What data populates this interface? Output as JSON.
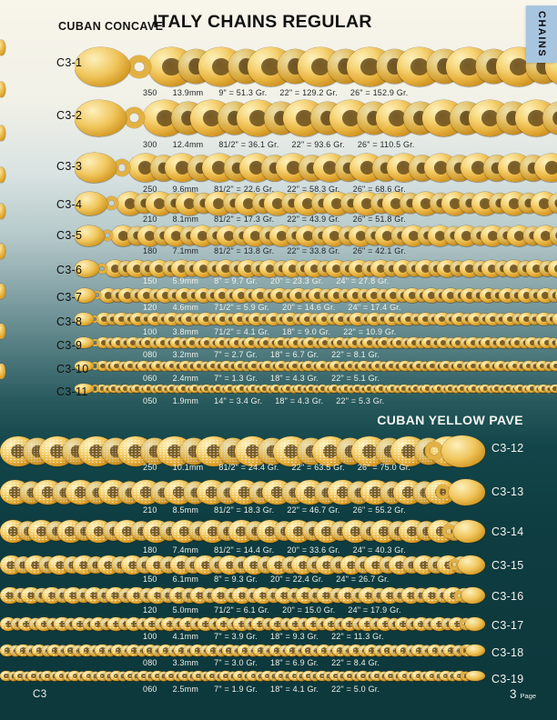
{
  "header": {
    "category": "CUBAN CONCAVE",
    "title": "ITALY CHAINS REGULAR",
    "side_tab": "CHAINS"
  },
  "sections": [
    {
      "title": "CUBAN CONCAVE",
      "rows": [
        {
          "code": "C3-1",
          "weight_code": "350",
          "size_mm": "13.9mm",
          "spec1": "9\" = 51.3 Gr.",
          "spec2": "22\" = 129.2 Gr.",
          "spec3": "26\" = 152.9 Gr."
        },
        {
          "code": "C3-2",
          "weight_code": "300",
          "size_mm": "12.4mm",
          "spec1": "81/2\" = 36.1 Gr.",
          "spec2": "22\" = 93.6 Gr.",
          "spec3": "26\" = 110.5 Gr."
        },
        {
          "code": "C3-3",
          "weight_code": "250",
          "size_mm": "9.6mm",
          "spec1": "81/2\" = 22.6 Gr.",
          "spec2": "22\" = 58.3 Gr.",
          "spec3": "26\" = 68.6 Gr."
        },
        {
          "code": "C3-4",
          "weight_code": "210",
          "size_mm": "8.1mm",
          "spec1": "81/2\" = 17.3 Gr.",
          "spec2": "22\" = 43.9 Gr.",
          "spec3": "26\" = 51.8 Gr."
        },
        {
          "code": "C3-5",
          "weight_code": "180",
          "size_mm": "7.1mm",
          "spec1": "81/2\" = 13.8 Gr.",
          "spec2": "22\" = 33.8 Gr.",
          "spec3": "26\" = 42.1 Gr."
        },
        {
          "code": "C3-6",
          "weight_code": "150",
          "size_mm": "5.9mm",
          "spec1": "8\" = 9.7 Gr.",
          "spec2": "20\" = 23.3 Gr.",
          "spec3": "24\" = 27.8 Gr."
        },
        {
          "code": "C3-7",
          "weight_code": "120",
          "size_mm": "4.6mm",
          "spec1": "71/2\" = 5.9 Gr.",
          "spec2": "20\" = 14.6 Gr.",
          "spec3": "24\" = 17.4 Gr."
        },
        {
          "code": "C3-8",
          "weight_code": "100",
          "size_mm": "3.8mm",
          "spec1": "71/2\" = 4.1 Gr.",
          "spec2": "18\" = 9.0 Gr.",
          "spec3": "22\" = 10.9 Gr."
        },
        {
          "code": "C3-9",
          "weight_code": "080",
          "size_mm": "3.2mm",
          "spec1": "7\" = 2.7 Gr.",
          "spec2": "18\" = 6.7 Gr.",
          "spec3": "22\" = 8.1 Gr."
        },
        {
          "code": "C3-10",
          "weight_code": "060",
          "size_mm": "2.4mm",
          "spec1": "7\" = 1.3 Gr.",
          "spec2": "18\" = 4.3 Gr.",
          "spec3": "22\" = 5.1 Gr."
        },
        {
          "code": "C3-11",
          "weight_code": "050",
          "size_mm": "1.9mm",
          "spec1": "14\" = 3.4 Gr.",
          "spec2": "18\" = 4.3 Gr.",
          "spec3": "22\" = 5.3 Gr."
        }
      ]
    },
    {
      "title": "CUBAN YELLOW PAVE",
      "rows": [
        {
          "code": "C3-12",
          "weight_code": "250",
          "size_mm": "10.1mm",
          "spec1": "81/2\" = 24.4 Gr.",
          "spec2": "22\" = 63.5 Gr.",
          "spec3": "26\" = 75.0 Gr."
        },
        {
          "code": "C3-13",
          "weight_code": "210",
          "size_mm": "8.5mm",
          "spec1": "81/2\" = 18.3 Gr.",
          "spec2": "22\" = 46.7 Gr.",
          "spec3": "26\" = 55.2 Gr."
        },
        {
          "code": "C3-14",
          "weight_code": "180",
          "size_mm": "7.4mm",
          "spec1": "81/2\" = 14.4 Gr.",
          "spec2": "20\" = 33.6 Gr.",
          "spec3": "24\" = 40.3 Gr."
        },
        {
          "code": "C3-15",
          "weight_code": "150",
          "size_mm": "6.1mm",
          "spec1": "8\" = 9.3 Gr.",
          "spec2": "20\" = 22.4 Gr.",
          "spec3": "24\" = 26.7 Gr."
        },
        {
          "code": "C3-16",
          "weight_code": "120",
          "size_mm": "5.0mm",
          "spec1": "71/2\" = 6.1 Gr.",
          "spec2": "20\" = 15.0 Gr.",
          "spec3": "24\" = 17.9 Gr."
        },
        {
          "code": "C3-17",
          "weight_code": "100",
          "size_mm": "4.1mm",
          "spec1": "7\" = 3.9 Gr.",
          "spec2": "18\" = 9.3 Gr.",
          "spec3": "22\" = 11.3 Gr."
        },
        {
          "code": "C3-18",
          "weight_code": "080",
          "size_mm": "3.3mm",
          "spec1": "7\" = 3.0 Gr.",
          "spec2": "18\" = 6.9 Gr.",
          "spec3": "22\" = 8.4 Gr."
        },
        {
          "code": "C3-19",
          "weight_code": "060",
          "size_mm": "2.5mm",
          "spec1": "7\" = 1.9 Gr.",
          "spec2": "18\" = 4.1 Gr.",
          "spec3": "22\" = 5.0 Gr."
        }
      ]
    }
  ],
  "footer": {
    "catalog_code": "C3",
    "page_number": "3",
    "page_label": "Page"
  },
  "colors": {
    "gold": "#e8b23e",
    "tab_blue": "#a8c5df",
    "background_dark_teal": "#0d383c",
    "background_top": "#f8f5ea"
  }
}
